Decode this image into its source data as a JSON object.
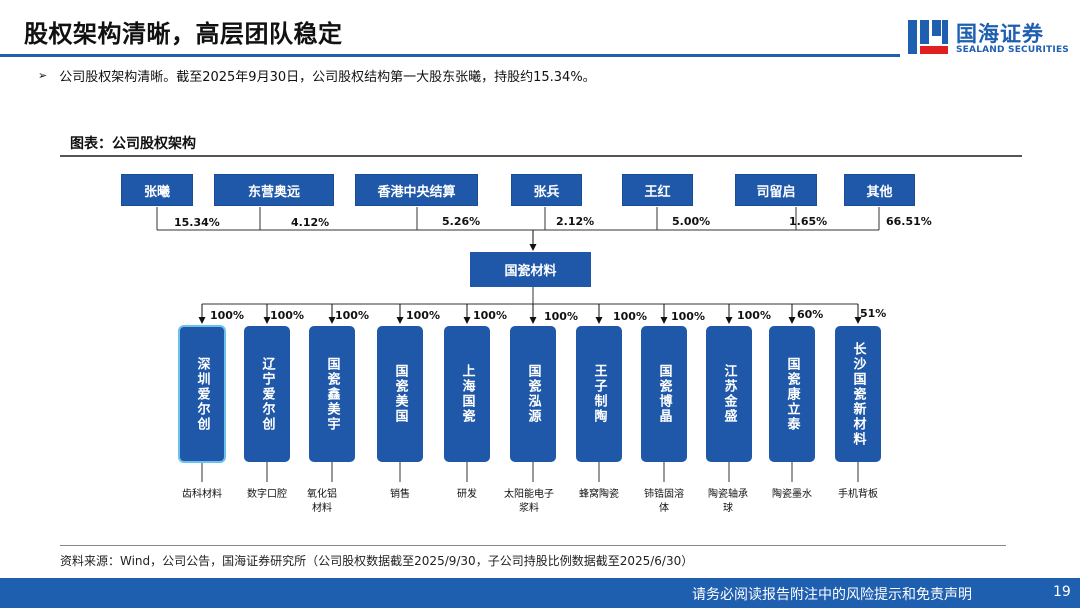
{
  "header": {
    "title": "股权架构清晰，高层团队稳定",
    "logo_cn": "国海证券",
    "logo_en": "SEALAND SECURITIES"
  },
  "bullet": "公司股权架构清晰。截至2025年9月30日，公司股权结构第一大股东张曦，持股约15.34%。",
  "figure": {
    "title": "图表：公司股权架构",
    "shareholders": [
      {
        "name": "张曦",
        "pct": "15.34%"
      },
      {
        "name": "东营奥远",
        "pct": "4.12%"
      },
      {
        "name": "香港中央结算",
        "pct": "5.26%"
      },
      {
        "name": "张兵",
        "pct": "2.12%"
      },
      {
        "name": "王红",
        "pct": "5.00%"
      },
      {
        "name": "司留启",
        "pct": "1.65%"
      },
      {
        "name": "其他",
        "pct": "66.51%"
      }
    ],
    "company": "国瓷材料",
    "subsidiaries": [
      {
        "name": "深圳爱尔创",
        "pct": "100%",
        "business": "齿科材料"
      },
      {
        "name": "辽宁爱尔创",
        "pct": "100%",
        "business": "数字口腔"
      },
      {
        "name": "国瓷鑫美宇",
        "pct": "100%",
        "business": "氧化铝材料"
      },
      {
        "name": "国瓷美国",
        "pct": "100%",
        "business": "销售"
      },
      {
        "name": "上海国瓷",
        "pct": "100%",
        "business": "研发"
      },
      {
        "name": "国瓷泓源",
        "pct": "100%",
        "business": "太阳能电子浆料"
      },
      {
        "name": "王子制陶",
        "pct": "100%",
        "business": "蜂窝陶瓷"
      },
      {
        "name": "国瓷博晶",
        "pct": "100%",
        "business": "铈锆固溶体"
      },
      {
        "name": "江苏金盛",
        "pct": "100%",
        "business": "陶瓷轴承球"
      },
      {
        "name": "国瓷康立泰",
        "pct": "60%",
        "business": "陶瓷墨水"
      },
      {
        "name": "长沙国瓷新材料",
        "pct": "51%",
        "business": "手机背板"
      }
    ]
  },
  "source": "资料来源：Wind，公司公告，国海证券研究所（公司股权数据截至2025/9/30，子公司持股比例数据截至2025/6/30）",
  "footer": {
    "disclaimer": "请务必阅读报告附注中的风险提示和免责声明",
    "page": "19"
  },
  "colors": {
    "brand": "#1f5fb0",
    "node": "#1f58a8",
    "highlight": "#6cc1ee"
  }
}
